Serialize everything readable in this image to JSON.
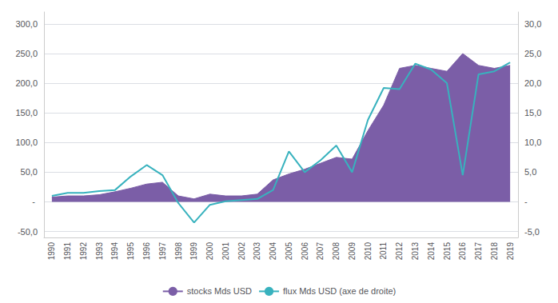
{
  "chart_data": {
    "type": "line",
    "x": [
      1990,
      1991,
      1992,
      1993,
      1994,
      1995,
      1996,
      1997,
      1998,
      1999,
      2000,
      2001,
      2002,
      2003,
      2004,
      2005,
      2006,
      2007,
      2008,
      2009,
      2010,
      2011,
      2012,
      2013,
      2014,
      2015,
      2016,
      2017,
      2018,
      2019
    ],
    "series": [
      {
        "name": "stocks Mds USD",
        "type": "area",
        "color": "#7b5ea7",
        "values": [
          8,
          10,
          10,
          12,
          17,
          23,
          30,
          33,
          10,
          5,
          13,
          10,
          10,
          13,
          37,
          47,
          55,
          65,
          75,
          72,
          120,
          163,
          225,
          230,
          225,
          220,
          250,
          230,
          225,
          230
        ]
      },
      {
        "name": "flux Mds USD (axe de droite)",
        "type": "line",
        "axis": "y2",
        "color": "#38b2be",
        "values": [
          1.0,
          1.5,
          1.5,
          1.8,
          2.0,
          4.3,
          6.2,
          4.5,
          -0.2,
          -3.5,
          -0.5,
          0.1,
          0.3,
          0.5,
          2.0,
          8.5,
          5.0,
          7.0,
          9.5,
          5.0,
          13.8,
          19.2,
          19.0,
          23.3,
          22.3,
          20.0,
          4.5,
          21.5,
          22.0,
          23.5
        ]
      }
    ],
    "xlim": [
      1989.5,
      2019.5
    ],
    "xticks": [
      1990,
      1991,
      1992,
      1993,
      1994,
      1995,
      1996,
      1997,
      1998,
      1999,
      2000,
      2001,
      2002,
      2003,
      2004,
      2005,
      2006,
      2007,
      2008,
      2009,
      2010,
      2011,
      2012,
      2013,
      2014,
      2015,
      2016,
      2017,
      2018,
      2019
    ],
    "ylim": [
      -60,
      320
    ],
    "yticks": [
      {
        "value": -50,
        "label": "-50,0"
      },
      {
        "value": 0,
        "label": "- "
      },
      {
        "value": 50,
        "label": "50,0"
      },
      {
        "value": 100,
        "label": "100,0"
      },
      {
        "value": 150,
        "label": "150,0"
      },
      {
        "value": 200,
        "label": "200,0"
      },
      {
        "value": 250,
        "label": "250,0"
      },
      {
        "value": 300,
        "label": "300,0"
      }
    ],
    "y2lim": [
      -6,
      32
    ],
    "y2ticks": [
      {
        "value": -5,
        "label": "-5,0"
      },
      {
        "value": 0,
        "label": "- "
      },
      {
        "value": 5,
        "label": "5,0"
      },
      {
        "value": 10,
        "label": "10,0"
      },
      {
        "value": 15,
        "label": "15,0"
      },
      {
        "value": 20,
        "label": "20,0"
      },
      {
        "value": 25,
        "label": "25,0"
      },
      {
        "value": 30,
        "label": "30,0"
      }
    ],
    "grid": true,
    "legend": "lower center"
  }
}
